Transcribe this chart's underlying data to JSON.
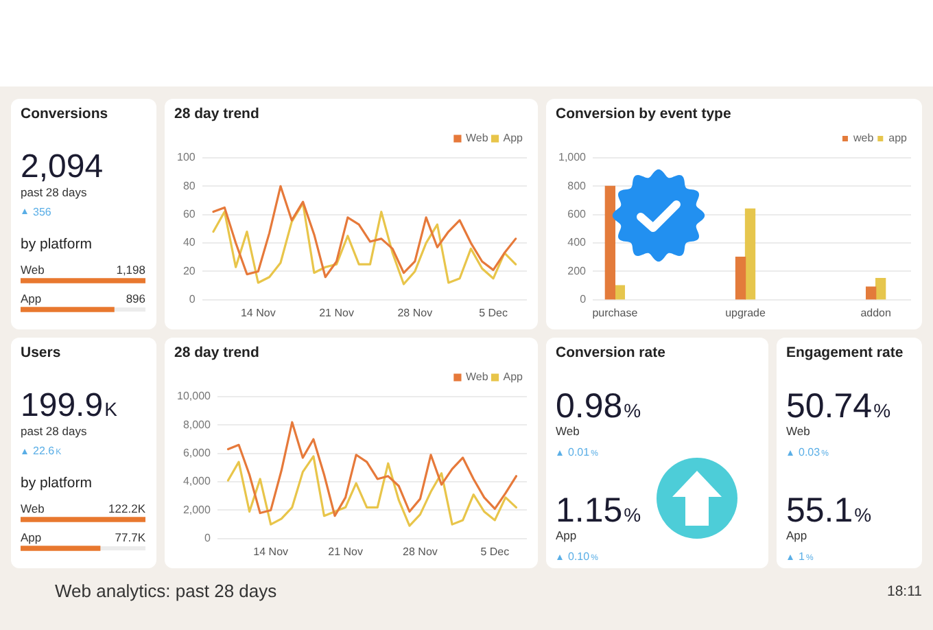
{
  "chart_data": [
    {
      "type": "bar",
      "orientation": "horizontal",
      "title": "Conversions",
      "categories": [
        "Web",
        "App"
      ],
      "values": [
        1198,
        896
      ],
      "value_labels": [
        "1,198",
        "896"
      ],
      "color": "#e8782f",
      "annotations": [
        "2,094",
        "past 28 days",
        "356",
        "by platform"
      ]
    },
    {
      "type": "line",
      "title": "28 day trend",
      "categories": [
        null,
        null,
        null,
        null,
        "14 Nov",
        null,
        null,
        null,
        null,
        null,
        null,
        "21 Nov",
        null,
        null,
        null,
        null,
        null,
        null,
        "28 Nov",
        null,
        null,
        null,
        null,
        null,
        null,
        "5 Dec",
        null,
        null
      ],
      "series": [
        {
          "name": "Web",
          "color": "#e6793a",
          "values": [
            62,
            65,
            40,
            18,
            20,
            47,
            80,
            56,
            69,
            46,
            16,
            27,
            58,
            53,
            41,
            43,
            36,
            19,
            27,
            58,
            37,
            48,
            56,
            40,
            27,
            21,
            33,
            43
          ]
        },
        {
          "name": "App",
          "color": "#e8c54a",
          "values": [
            48,
            62,
            23,
            48,
            12,
            16,
            26,
            55,
            68,
            19,
            23,
            25,
            45,
            25,
            25,
            62,
            33,
            11,
            20,
            40,
            53,
            12,
            15,
            36,
            22,
            15,
            33,
            25
          ]
        }
      ],
      "ylim": [
        0,
        100
      ],
      "yticks": [
        0,
        20,
        40,
        60,
        80,
        100
      ],
      "grid": "y",
      "legend": "top right"
    },
    {
      "type": "bar",
      "title": "Conversion by event type",
      "categories": [
        "purchase",
        "upgrade",
        "addon"
      ],
      "series": [
        {
          "name": "web",
          "color": "#e37b3b",
          "values": [
            800,
            300,
            90
          ]
        },
        {
          "name": "app",
          "color": "#e6c64d",
          "values": [
            100,
            640,
            150
          ]
        }
      ],
      "ylim": [
        0,
        1000
      ],
      "yticks": [
        0,
        200,
        400,
        600,
        800,
        {
          "value": 1000,
          "label": "1,000"
        }
      ],
      "grid": "y",
      "legend": "top right"
    },
    {
      "type": "bar",
      "orientation": "horizontal",
      "title": "Users",
      "categories": [
        "Web",
        "App"
      ],
      "values": [
        122200,
        77700
      ],
      "value_labels": [
        "122.2K",
        "77.7K"
      ],
      "color": "#e8782f",
      "annotations": [
        "199.9K",
        "past 28 days",
        "22.6K",
        "by platform"
      ]
    },
    {
      "type": "line",
      "title": "28 day trend",
      "categories": [
        null,
        null,
        null,
        null,
        "14 Nov",
        null,
        null,
        null,
        null,
        null,
        null,
        "21 Nov",
        null,
        null,
        null,
        null,
        null,
        null,
        "28 Nov",
        null,
        null,
        null,
        null,
        null,
        null,
        "5 Dec",
        null,
        null
      ],
      "series": [
        {
          "name": "Web",
          "color": "#e6793a",
          "values": [
            6300,
            6600,
            4500,
            1800,
            2000,
            4800,
            8200,
            5700,
            7000,
            4500,
            1600,
            2900,
            5900,
            5400,
            4200,
            4400,
            3700,
            1900,
            2800,
            5900,
            3800,
            4900,
            5700,
            4200,
            2900,
            2100,
            3200,
            4400
          ]
        },
        {
          "name": "App",
          "color": "#e8c54a",
          "values": [
            4100,
            5400,
            1900,
            4200,
            1000,
            1400,
            2200,
            4700,
            5800,
            1600,
            1900,
            2200,
            3900,
            2200,
            2200,
            5300,
            2700,
            900,
            1700,
            3300,
            4600,
            1000,
            1300,
            3100,
            1900,
            1300,
            2900,
            2200
          ]
        }
      ],
      "ylim": [
        0,
        10000
      ],
      "yticks": [
        0,
        {
          "value": 2000,
          "label": "2,000"
        },
        {
          "value": 4000,
          "label": "4,000"
        },
        {
          "value": 6000,
          "label": "6,000"
        },
        {
          "value": 8000,
          "label": "8,000"
        },
        {
          "value": 10000,
          "label": "10,000"
        }
      ],
      "grid": "y",
      "legend": "top right"
    },
    {
      "type": "other",
      "title": "Conversion rate",
      "annotations": [
        "0.98%",
        "Web",
        "0.01%",
        "1.15%",
        "App",
        "0.10%"
      ]
    },
    {
      "type": "other",
      "title": "Engagement rate",
      "annotations": [
        "50.74%",
        "Web",
        "0.03%",
        "55.1%",
        "App",
        "1%"
      ]
    },
    {
      "type": "other",
      "title": "Web analytics: past 28 days",
      "annotations": [
        "18:11"
      ]
    }
  ]
}
